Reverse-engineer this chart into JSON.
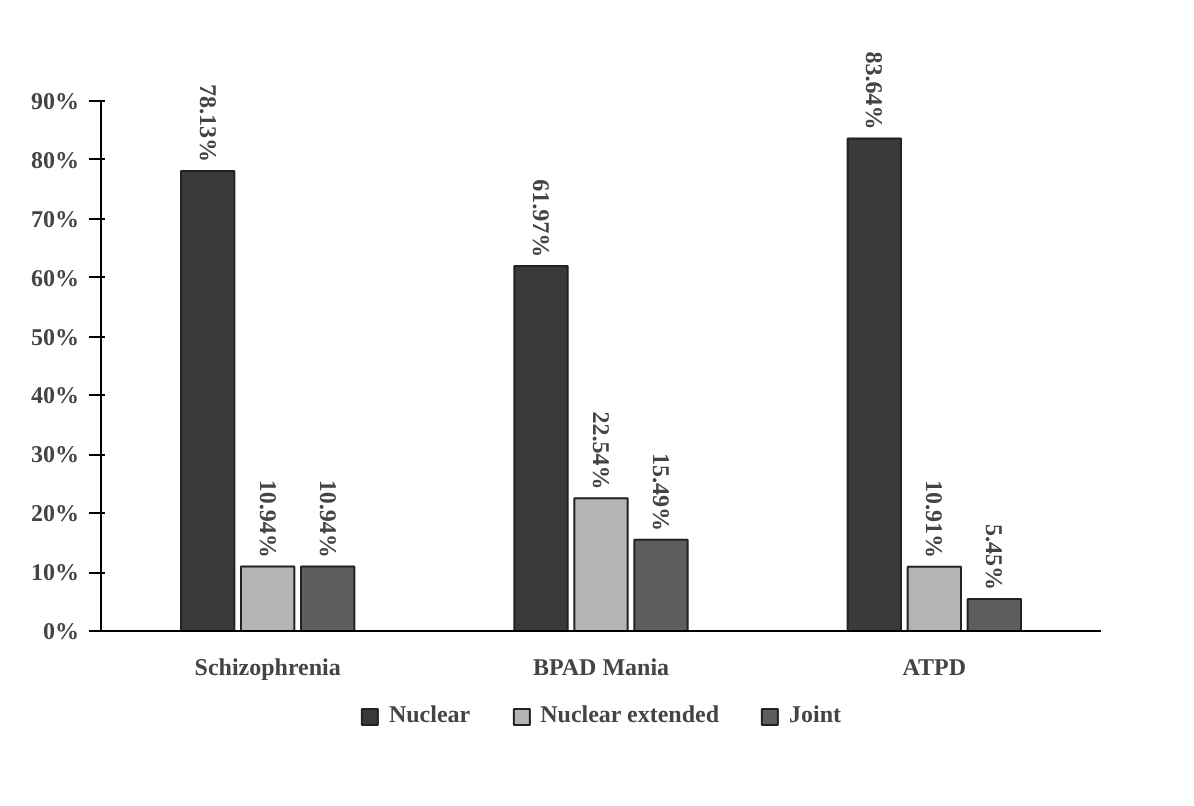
{
  "chart_data": {
    "type": "bar",
    "categories": [
      "Schizophrenia",
      "BPAD Mania",
      "ATPD"
    ],
    "series": [
      {
        "name": "Nuclear",
        "color": "#3a3a3a",
        "values": [
          78.13,
          61.97,
          83.64
        ],
        "value_labels": [
          "78.13%",
          "61.97%",
          "83.64%"
        ]
      },
      {
        "name": "Nuclear extended",
        "color": "#b4b4b4",
        "values": [
          10.94,
          22.54,
          10.91
        ],
        "value_labels": [
          "10.94%",
          "22.54%",
          "10.91%"
        ]
      },
      {
        "name": "Joint",
        "color": "#5e5e5e",
        "values": [
          10.94,
          15.49,
          5.45
        ],
        "value_labels": [
          "10.94%",
          "15.49%",
          "5.45%"
        ]
      }
    ],
    "ylim": [
      0,
      90
    ],
    "yticks": [
      {
        "value": 0,
        "label": "0%"
      },
      {
        "value": 10,
        "label": "10%"
      },
      {
        "value": 20,
        "label": "20%"
      },
      {
        "value": 30,
        "label": "30%"
      },
      {
        "value": 40,
        "label": "40%"
      },
      {
        "value": 50,
        "label": "50%"
      },
      {
        "value": 60,
        "label": "60%"
      },
      {
        "value": 70,
        "label": "70%"
      },
      {
        "value": 80,
        "label": "80%"
      },
      {
        "value": 90,
        "label": "90%"
      }
    ],
    "grid": false,
    "legend": "bottom"
  }
}
